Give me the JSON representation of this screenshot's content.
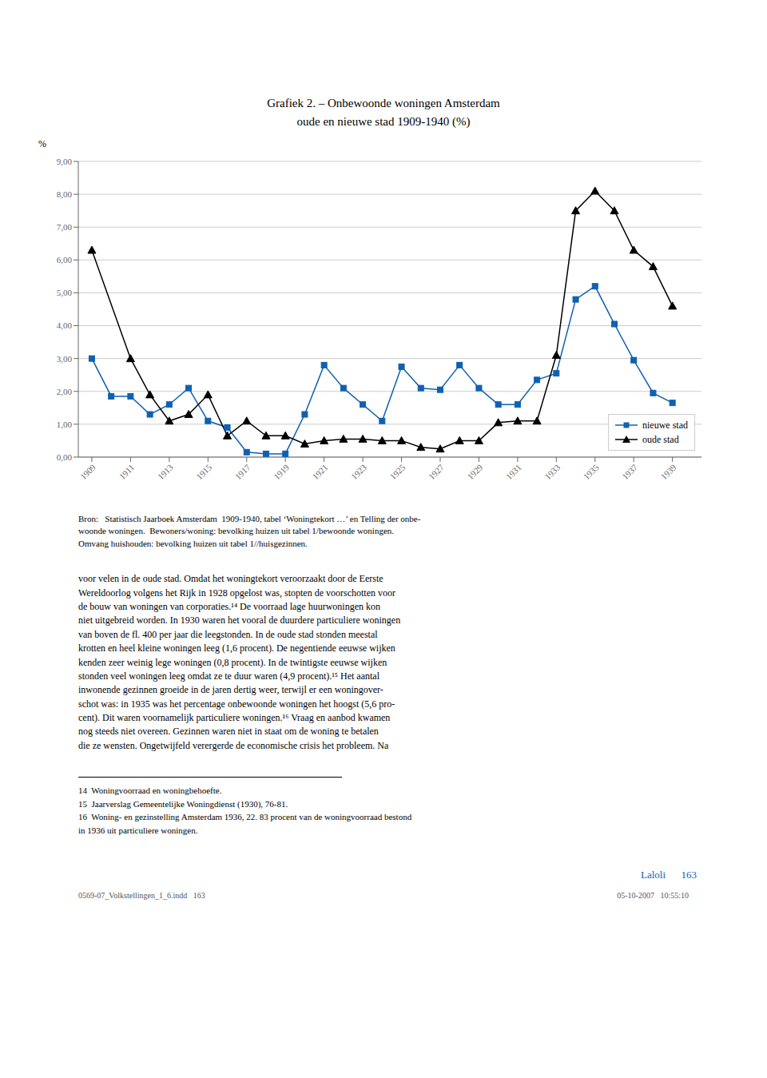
{
  "chart_data": {
    "type": "line",
    "title": "Grafiek 2. – Onbewoonde woningen Amsterdam\noude en nieuwe stad 1909-1940 (%)",
    "y_label": "%",
    "xlim": [
      1908.3,
      1940.5
    ],
    "xticks": [
      1909,
      1911,
      1913,
      1915,
      1917,
      1919,
      1921,
      1923,
      1925,
      1927,
      1929,
      1931,
      1933,
      1935,
      1937,
      1939
    ],
    "ylim": [
      0.0,
      9.0
    ],
    "yticks": [
      {
        "value": 0,
        "label": "0,00"
      },
      {
        "value": 1,
        "label": "1,00"
      },
      {
        "value": 2,
        "label": "2,00"
      },
      {
        "value": 3,
        "label": "3,00"
      },
      {
        "value": 4,
        "label": "4,00"
      },
      {
        "value": 5,
        "label": "5,00"
      },
      {
        "value": 6,
        "label": "6,00"
      },
      {
        "value": 7,
        "label": "7,00"
      },
      {
        "value": 8,
        "label": "8,00"
      },
      {
        "value": 9,
        "label": "9,00"
      }
    ],
    "grid": true,
    "legend": "lower right",
    "series": [
      {
        "name": "nieuwe stad",
        "color": "#1060b0",
        "marker": "square",
        "x": [
          1909,
          1910,
          1911,
          1912,
          1913,
          1914,
          1915,
          1916,
          1917,
          1918,
          1919,
          1920,
          1921,
          1922,
          1923,
          1924,
          1925,
          1926,
          1927,
          1928,
          1929,
          1930,
          1931,
          1932,
          1933,
          1934,
          1935,
          1936,
          1937,
          1938,
          1939
        ],
        "values": [
          3.0,
          1.85,
          1.85,
          1.3,
          1.6,
          2.1,
          1.1,
          0.9,
          0.15,
          0.1,
          0.1,
          1.3,
          2.8,
          2.1,
          1.6,
          1.1,
          2.75,
          2.1,
          2.05,
          2.8,
          2.1,
          1.6,
          1.6,
          2.35,
          2.55,
          4.8,
          5.2,
          4.05,
          2.95,
          1.95,
          1.65
        ]
      },
      {
        "name": "oude stad",
        "color": "#000000",
        "marker": "triangle",
        "x": [
          1909,
          1911,
          1912,
          1913,
          1914,
          1915,
          1916,
          1917,
          1918,
          1919,
          1920,
          1921,
          1922,
          1923,
          1924,
          1925,
          1926,
          1927,
          1928,
          1929,
          1930,
          1931,
          1932,
          1933,
          1934,
          1935,
          1936,
          1937,
          1938,
          1939
        ],
        "values": [
          6.3,
          3.0,
          1.9,
          1.1,
          1.3,
          1.9,
          0.65,
          1.1,
          0.65,
          0.65,
          0.4,
          0.5,
          0.55,
          0.55,
          0.5,
          0.5,
          0.3,
          0.25,
          0.5,
          0.5,
          1.05,
          1.1,
          1.1,
          3.1,
          7.5,
          8.1,
          7.5,
          6.3,
          5.8,
          4.6
        ]
      }
    ],
    "annotations": [
      "Bron:   Statistisch Jaarboek Amsterdam  1909-1940, tabel ‘Woningtekort …’ en Telling der onbe-\nwoonde woningen.  Bewoners/woning: bevolking huizen uit tabel 1/bewoonde woningen.\nOmvang huishouden: bevolking huizen uit tabel 1//huisgezinnen.",
      "voor velen in de oude stad. Omdat het woningtekort veroorzaakt door de Eerste\nWereldoorlog volgens het Rijk in 1928 opgelost was, stopten de voorschotten voor\nde bouw van woningen van corporaties.¹⁴ De voorraad lage huurwoningen kon\nniet uitgebreid worden. In 1930 waren het vooral de duurdere particuliere woningen\nvan boven de fl. 400 per jaar die leegstonden. In de oude stad stonden meestal\nkrotten en heel kleine woningen leeg (1,6 procent). De negentiende eeuwse wijken\nkenden zeer weinig lege woningen (0,8 procent). In de twintigste eeuwse wijken\nstonden veel woningen leeg omdat ze te duur waren (4,9 procent).¹⁵ Het aantal\ninwonende gezinnen groeide in de jaren dertig weer, terwijl er een woningover-\nschot was: in 1935 was het percentage onbewoonde woningen het hoogst (5,6 pro-\ncent). Dit waren voornamelijk particuliere woningen.¹⁶ Vraag en aanbod kwamen\nnog steeds niet overeen. Gezinnen waren niet in staat om de woning te betalen\ndie ze wensten. Ongetwijfeld verergerde de economische crisis het probleem. Na",
      "14  Woningvoorraad en woningbehoefte.\n15  Jaarverslag Gemeentelijke Woningdienst (1930), 76-81.\n16  Woning- en gezinstelling Amsterdam 1936, 22. 83 procent van de woningvoorraad bestond\nin 1936 uit particuliere woningen.",
      "Laloli   163",
      "0569-07_Volkstellingen_1_6.indd   163",
      "05-10-2007   10:55:10"
    ]
  }
}
